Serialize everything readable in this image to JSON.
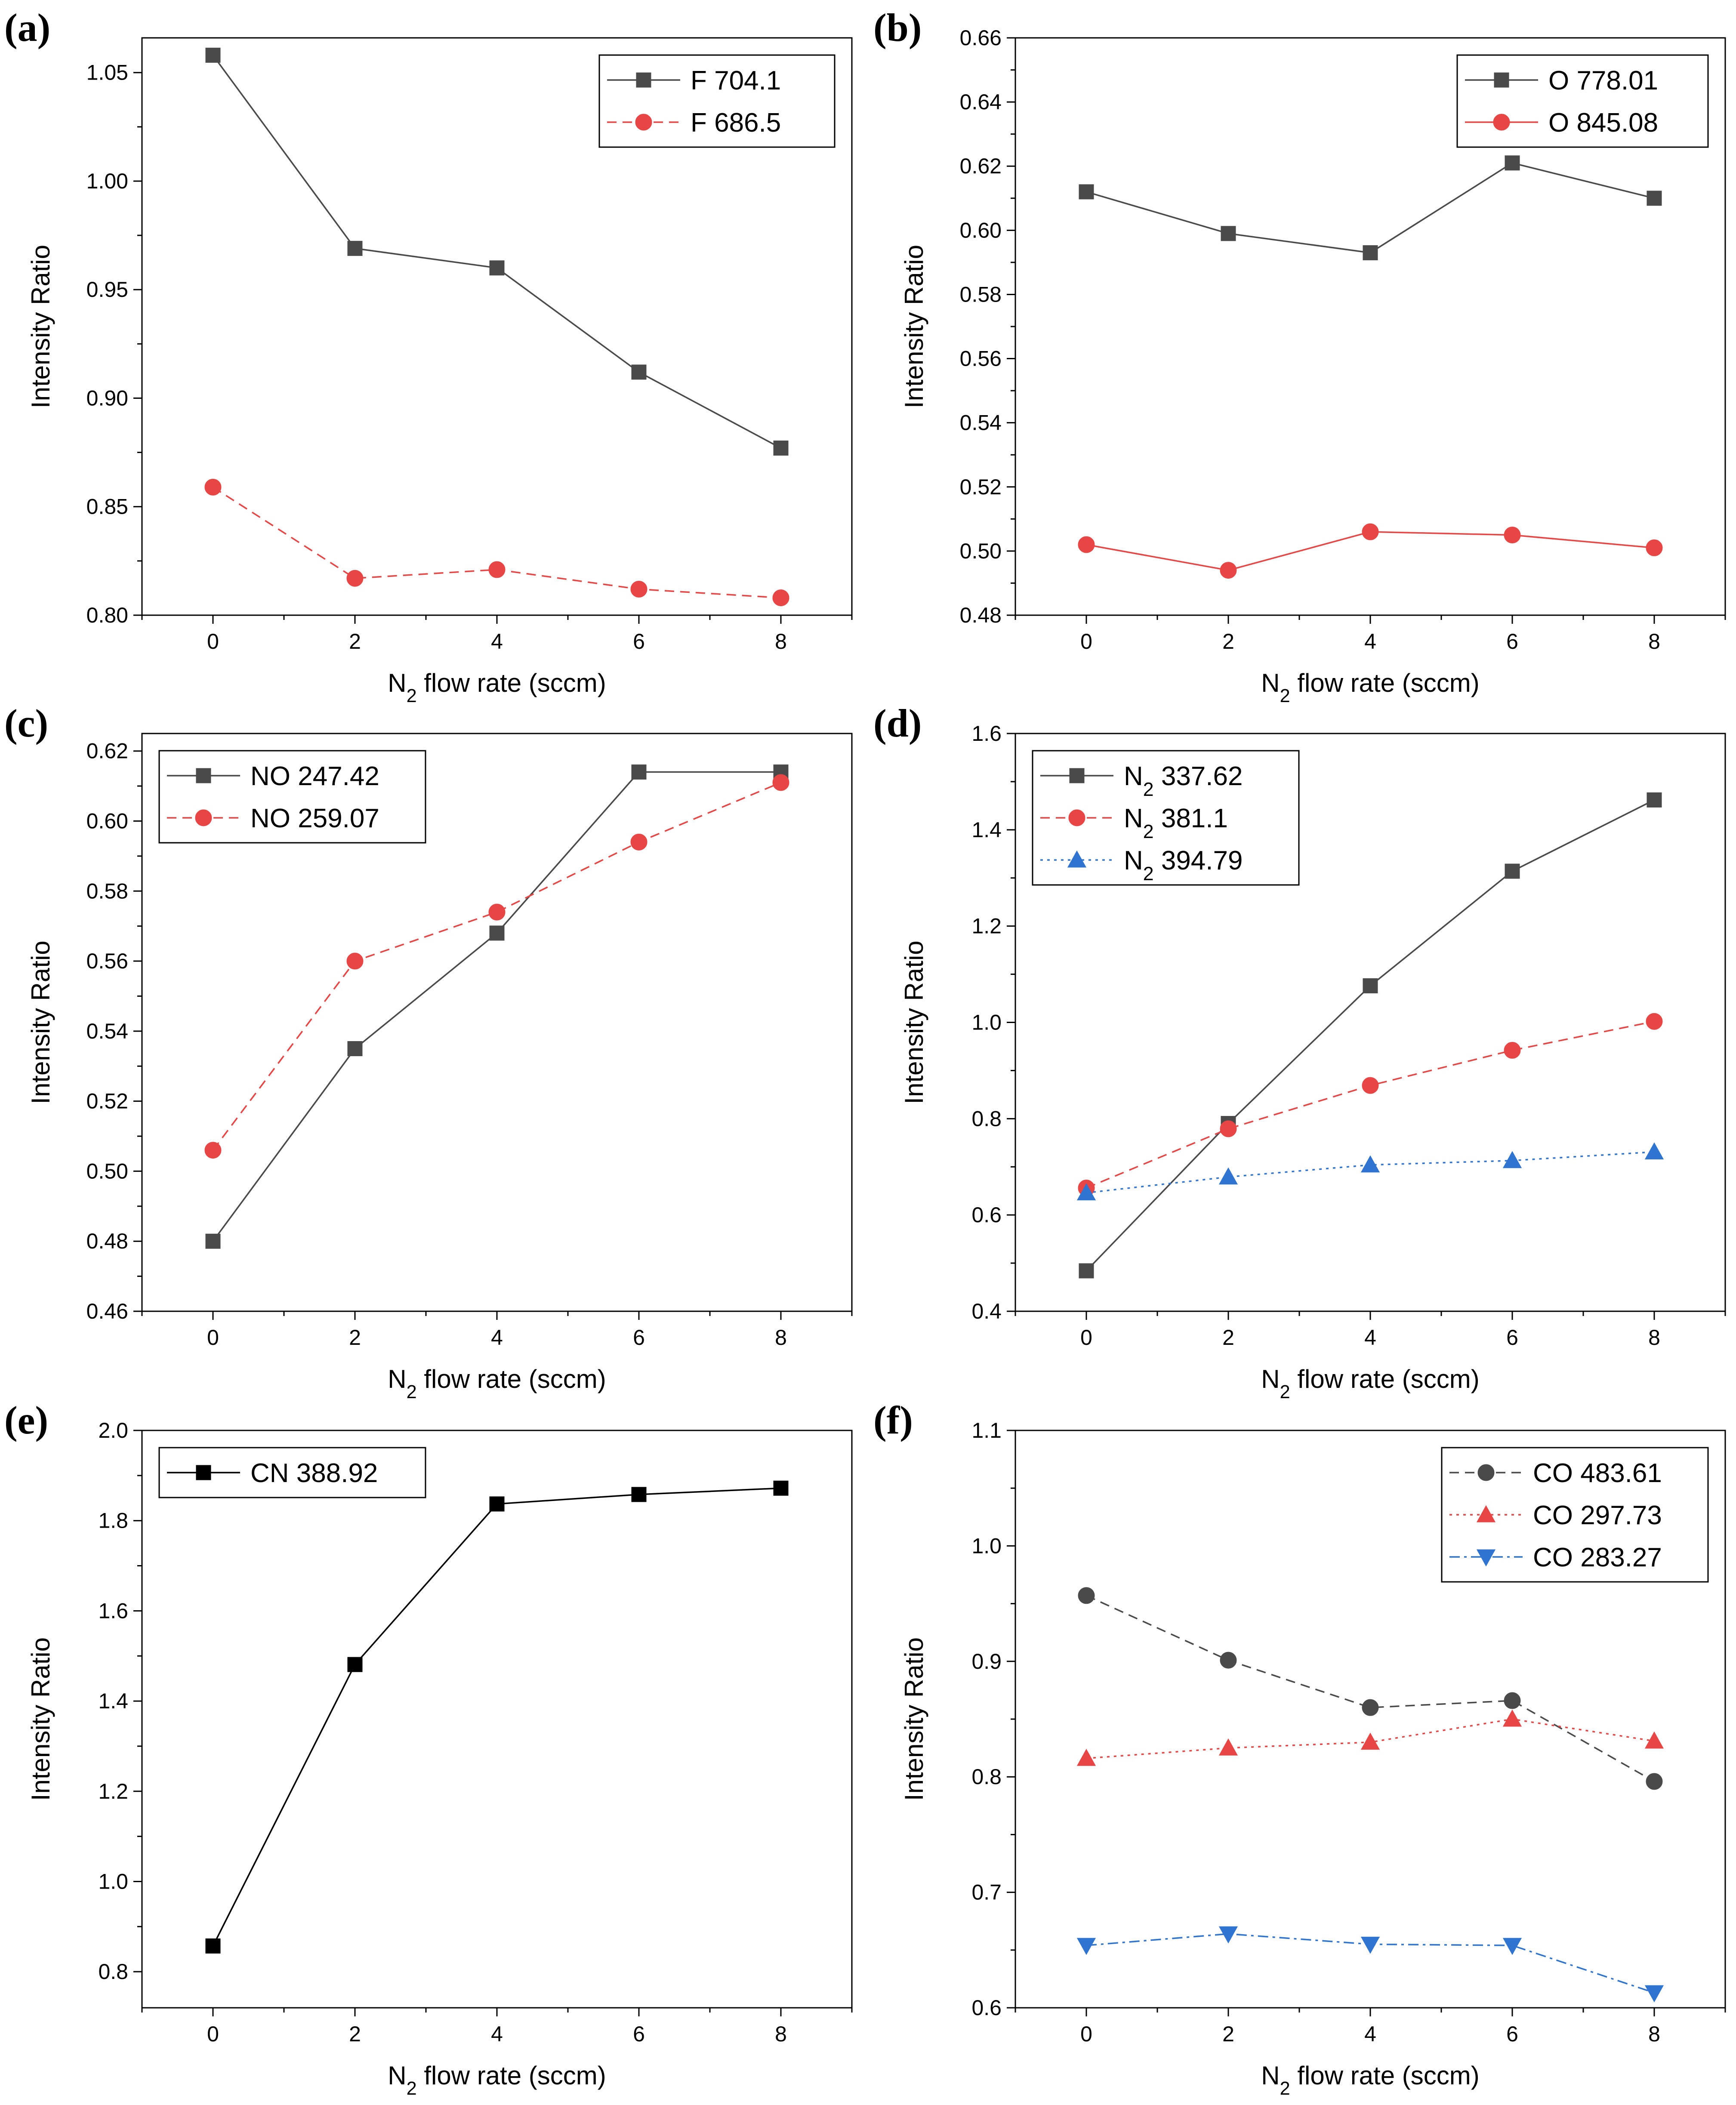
{
  "figure": {
    "panels": [
      "(a)",
      "(b)",
      "(c)",
      "(d)",
      "(e)",
      "(f)"
    ]
  },
  "chart_data": [
    {
      "panel": "(a)",
      "type": "line",
      "xlabel": "N2 flow rate (sccm)",
      "ylabel": "Intensity Ratio",
      "xlim": [
        -1,
        9
      ],
      "ylim": [
        0.8,
        1.066
      ],
      "xticks": [
        0,
        2,
        4,
        6,
        8
      ],
      "xtick_labels": [
        "0",
        "2",
        "4",
        "6",
        "8"
      ],
      "yticks": [
        0.8,
        0.85,
        0.9,
        0.95,
        1.0,
        1.05
      ],
      "ytick_labels": [
        "0.80",
        "0.85",
        "0.90",
        "0.95",
        "1.00",
        "1.05"
      ],
      "legend_position": "top-right",
      "series": [
        {
          "name": "F 704.1",
          "x": [
            0,
            2,
            4,
            6,
            8
          ],
          "values": [
            1.058,
            0.969,
            0.96,
            0.912,
            0.877
          ],
          "color": "#4a4a4a",
          "marker": "square",
          "dash": "solid"
        },
        {
          "name": "F 686.5",
          "x": [
            0,
            2,
            4,
            6,
            8
          ],
          "values": [
            0.859,
            0.817,
            0.821,
            0.812,
            0.808
          ],
          "color": "#e84545",
          "marker": "circle",
          "dash": "dashed"
        }
      ]
    },
    {
      "panel": "(b)",
      "type": "line",
      "xlabel": "N2 flow rate (sccm)",
      "ylabel": "Intensity Ratio",
      "xlim": [
        -1,
        9
      ],
      "ylim": [
        0.48,
        0.66
      ],
      "xticks": [
        0,
        2,
        4,
        6,
        8
      ],
      "xtick_labels": [
        "0",
        "2",
        "4",
        "6",
        "8"
      ],
      "yticks": [
        0.48,
        0.5,
        0.52,
        0.54,
        0.56,
        0.58,
        0.6,
        0.62,
        0.64,
        0.66
      ],
      "ytick_labels": [
        "0.48",
        "0.50",
        "0.52",
        "0.54",
        "0.56",
        "0.58",
        "0.60",
        "0.62",
        "0.64",
        "0.66"
      ],
      "legend_position": "top-right",
      "series": [
        {
          "name": "O 778.01",
          "x": [
            0,
            2,
            4,
            6,
            8
          ],
          "values": [
            0.612,
            0.599,
            0.593,
            0.621,
            0.61
          ],
          "color": "#4a4a4a",
          "marker": "square",
          "dash": "solid"
        },
        {
          "name": "O 845.08",
          "x": [
            0,
            2,
            4,
            6,
            8
          ],
          "values": [
            0.502,
            0.494,
            0.506,
            0.505,
            0.501
          ],
          "color": "#e84545",
          "marker": "circle",
          "dash": "solid"
        }
      ]
    },
    {
      "panel": "(c)",
      "type": "line",
      "xlabel": "N2 flow rate (sccm)",
      "ylabel": "Intensity Ratio",
      "xlim": [
        -1,
        9
      ],
      "ylim": [
        0.46,
        0.625
      ],
      "xticks": [
        0,
        2,
        4,
        6,
        8
      ],
      "xtick_labels": [
        "0",
        "2",
        "4",
        "6",
        "8"
      ],
      "yticks": [
        0.46,
        0.48,
        0.5,
        0.52,
        0.54,
        0.56,
        0.58,
        0.6,
        0.62
      ],
      "ytick_labels": [
        "0.46",
        "0.48",
        "0.50",
        "0.52",
        "0.54",
        "0.56",
        "0.58",
        "0.60",
        "0.62"
      ],
      "legend_position": "top-left",
      "series": [
        {
          "name": "NO 247.42",
          "x": [
            0,
            2,
            4,
            6,
            8
          ],
          "values": [
            0.48,
            0.535,
            0.568,
            0.614,
            0.614
          ],
          "color": "#4a4a4a",
          "marker": "square",
          "dash": "solid"
        },
        {
          "name": "NO 259.07",
          "x": [
            0,
            2,
            4,
            6,
            8
          ],
          "values": [
            0.506,
            0.56,
            0.574,
            0.594,
            0.611
          ],
          "color": "#e84545",
          "marker": "circle",
          "dash": "dashed"
        }
      ]
    },
    {
      "panel": "(d)",
      "type": "line",
      "xlabel": "N2 flow rate (sccm)",
      "ylabel": "Intensity Ratio",
      "xlim": [
        -1,
        9
      ],
      "ylim": [
        0.4,
        1.6
      ],
      "xticks": [
        0,
        2,
        4,
        6,
        8
      ],
      "xtick_labels": [
        "0",
        "2",
        "4",
        "6",
        "8"
      ],
      "yticks": [
        0.4,
        0.6,
        0.8,
        1.0,
        1.2,
        1.4,
        1.6
      ],
      "ytick_labels": [
        "0.4",
        "0.6",
        "0.8",
        "1.0",
        "1.2",
        "1.4",
        "1.6"
      ],
      "legend_position": "top-left",
      "series": [
        {
          "name": "N2 337.62",
          "x": [
            0,
            2,
            4,
            6,
            8
          ],
          "values": [
            0.484,
            0.79,
            1.076,
            1.314,
            1.462
          ],
          "color": "#4a4a4a",
          "marker": "square",
          "dash": "solid"
        },
        {
          "name": "N2 381.1",
          "x": [
            0,
            2,
            4,
            6,
            8
          ],
          "values": [
            0.656,
            0.779,
            0.869,
            0.942,
            1.002
          ],
          "color": "#e84545",
          "marker": "circle",
          "dash": "dashed"
        },
        {
          "name": "N2 394.79",
          "x": [
            0,
            2,
            4,
            6,
            8
          ],
          "values": [
            0.646,
            0.679,
            0.704,
            0.713,
            0.731
          ],
          "color": "#2f74d0",
          "marker": "triangle-up",
          "dash": "dotted"
        }
      ]
    },
    {
      "panel": "(e)",
      "type": "line",
      "xlabel": "N2 flow rate (sccm)",
      "ylabel": "Intensity Ratio",
      "xlim": [
        -1,
        9
      ],
      "ylim": [
        0.72,
        2.0
      ],
      "xticks": [
        0,
        2,
        4,
        6,
        8
      ],
      "xtick_labels": [
        "0",
        "2",
        "4",
        "6",
        "8"
      ],
      "yticks": [
        0.8,
        1.0,
        1.2,
        1.4,
        1.6,
        1.8,
        2.0
      ],
      "ytick_labels": [
        "0.8",
        "1.0",
        "1.2",
        "1.4",
        "1.6",
        "1.8",
        "2.0"
      ],
      "legend_position": "top-left",
      "series": [
        {
          "name": "CN 388.92",
          "x": [
            0,
            2,
            4,
            6,
            8
          ],
          "values": [
            0.857,
            1.481,
            1.837,
            1.858,
            1.872
          ],
          "color": "#000000",
          "marker": "square",
          "dash": "solid"
        }
      ]
    },
    {
      "panel": "(f)",
      "type": "line",
      "xlabel": "N2 flow rate (sccm)",
      "ylabel": "Intensity Ratio",
      "xlim": [
        -1,
        9
      ],
      "ylim": [
        0.6,
        1.1
      ],
      "xticks": [
        0,
        2,
        4,
        6,
        8
      ],
      "xtick_labels": [
        "0",
        "2",
        "4",
        "6",
        "8"
      ],
      "yticks": [
        0.6,
        0.7,
        0.8,
        0.9,
        1.0,
        1.1
      ],
      "ytick_labels": [
        "0.6",
        "0.7",
        "0.8",
        "0.9",
        "1.0",
        "1.1"
      ],
      "legend_position": "top-right",
      "series": [
        {
          "name": "CO 483.61",
          "x": [
            0,
            2,
            4,
            6,
            8
          ],
          "values": [
            0.957,
            0.901,
            0.86,
            0.866,
            0.796
          ],
          "color": "#4a4a4a",
          "marker": "circle",
          "dash": "dashed"
        },
        {
          "name": "CO 297.73",
          "x": [
            0,
            2,
            4,
            6,
            8
          ],
          "values": [
            0.816,
            0.825,
            0.83,
            0.85,
            0.831
          ],
          "color": "#e84545",
          "marker": "triangle-up",
          "dash": "dotted"
        },
        {
          "name": "CO 283.27",
          "x": [
            0,
            2,
            4,
            6,
            8
          ],
          "values": [
            0.654,
            0.664,
            0.655,
            0.654,
            0.613
          ],
          "color": "#2f74d0",
          "marker": "triangle-down",
          "dash": "dashdot"
        }
      ]
    }
  ]
}
